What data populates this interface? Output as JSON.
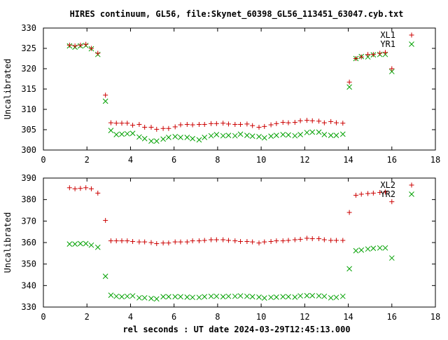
{
  "figure": {
    "title": "HIRES continuum, GL56, file:Skynet_60398_GL56_113451_63047.cyb.txt",
    "xlabel": "rel seconds : UT date 2024-03-29T12:45:13.000"
  },
  "colors": {
    "red": "#cc0000",
    "green": "#00a000",
    "axes": "#000000"
  },
  "chart_data": [
    {
      "type": "scatter",
      "ylabel": "Uncalibrated",
      "xlim": [
        0,
        18
      ],
      "ylim": [
        300,
        330
      ],
      "xticks": [
        0,
        2,
        4,
        6,
        8,
        10,
        12,
        14,
        16,
        18
      ],
      "yticks": [
        300,
        305,
        310,
        315,
        320,
        325,
        330
      ],
      "legend": "top-right",
      "grid": false,
      "series": [
        {
          "name": "XL1",
          "marker": "+",
          "color": "#cc0000",
          "x": [
            1.2,
            1.45,
            1.7,
            1.95,
            2.2,
            2.5,
            2.85,
            3.1,
            3.35,
            3.6,
            3.85,
            4.1,
            4.4,
            4.65,
            4.95,
            5.2,
            5.5,
            5.75,
            6.05,
            6.3,
            6.6,
            6.85,
            7.15,
            7.4,
            7.7,
            7.95,
            8.25,
            8.5,
            8.8,
            9.05,
            9.35,
            9.6,
            9.9,
            10.15,
            10.45,
            10.7,
            11.0,
            11.25,
            11.55,
            11.8,
            12.1,
            12.35,
            12.65,
            12.9,
            13.2,
            13.45,
            13.75,
            14.05,
            14.35,
            14.6,
            14.9,
            15.15,
            15.45,
            15.7,
            16.0
          ],
          "y": [
            325.8,
            325.6,
            325.8,
            326.0,
            325.0,
            323.8,
            313.5,
            306.7,
            306.6,
            306.6,
            306.6,
            306.1,
            306.3,
            305.6,
            305.6,
            305.1,
            305.3,
            305.3,
            305.7,
            306.2,
            306.3,
            306.2,
            306.3,
            306.3,
            306.5,
            306.5,
            306.6,
            306.4,
            306.3,
            306.3,
            306.4,
            306.0,
            305.6,
            305.8,
            306.2,
            306.5,
            306.8,
            306.7,
            306.8,
            307.2,
            307.3,
            307.2,
            307.1,
            306.7,
            307.0,
            306.7,
            306.6,
            316.7,
            322.5,
            322.9,
            323.5,
            323.5,
            323.8,
            324.0,
            320.0
          ]
        },
        {
          "name": "YR1",
          "marker": "x",
          "color": "#00a000",
          "x": [
            1.2,
            1.45,
            1.7,
            1.95,
            2.2,
            2.5,
            2.85,
            3.1,
            3.35,
            3.6,
            3.85,
            4.1,
            4.4,
            4.65,
            4.95,
            5.2,
            5.5,
            5.75,
            6.05,
            6.3,
            6.6,
            6.85,
            7.15,
            7.4,
            7.7,
            7.95,
            8.25,
            8.5,
            8.8,
            9.05,
            9.35,
            9.6,
            9.9,
            10.15,
            10.45,
            10.7,
            11.0,
            11.25,
            11.55,
            11.8,
            12.1,
            12.35,
            12.65,
            12.9,
            13.2,
            13.45,
            13.75,
            14.05,
            14.35,
            14.6,
            14.9,
            15.15,
            15.45,
            15.7,
            16.0
          ],
          "y": [
            325.6,
            325.3,
            325.6,
            325.7,
            324.9,
            323.5,
            312.0,
            304.8,
            303.8,
            303.9,
            304.0,
            304.1,
            303.2,
            302.8,
            302.2,
            302.2,
            302.7,
            303.1,
            303.3,
            303.1,
            303.1,
            302.8,
            302.5,
            303.1,
            303.5,
            303.8,
            303.5,
            303.6,
            303.5,
            303.9,
            303.6,
            303.4,
            303.3,
            303.0,
            303.4,
            303.6,
            303.8,
            303.7,
            303.5,
            303.8,
            304.3,
            304.4,
            304.4,
            303.8,
            303.6,
            303.6,
            303.9,
            315.5,
            322.5,
            323.0,
            322.9,
            323.4,
            323.5,
            323.5,
            319.3
          ]
        }
      ]
    },
    {
      "type": "scatter",
      "ylabel": "Uncalibrated",
      "xlim": [
        0,
        18
      ],
      "ylim": [
        330,
        390
      ],
      "xticks": [
        0,
        2,
        4,
        6,
        8,
        10,
        12,
        14,
        16,
        18
      ],
      "yticks": [
        330,
        340,
        350,
        360,
        370,
        380,
        390
      ],
      "legend": "top-right",
      "grid": false,
      "series": [
        {
          "name": "XL2",
          "marker": "+",
          "color": "#cc0000",
          "x": [
            1.2,
            1.45,
            1.7,
            1.95,
            2.2,
            2.5,
            2.85,
            3.1,
            3.35,
            3.6,
            3.85,
            4.1,
            4.4,
            4.65,
            4.95,
            5.2,
            5.5,
            5.75,
            6.05,
            6.3,
            6.6,
            6.85,
            7.15,
            7.4,
            7.7,
            7.95,
            8.25,
            8.5,
            8.8,
            9.05,
            9.35,
            9.6,
            9.9,
            10.15,
            10.45,
            10.7,
            11.0,
            11.25,
            11.55,
            11.8,
            12.1,
            12.35,
            12.65,
            12.9,
            13.2,
            13.45,
            13.75,
            14.05,
            14.35,
            14.6,
            14.9,
            15.15,
            15.45,
            15.7,
            16.0
          ],
          "y": [
            385.5,
            385.0,
            385.2,
            385.5,
            385.0,
            383.0,
            370.3,
            360.8,
            360.8,
            360.8,
            360.8,
            360.5,
            360.3,
            360.3,
            360.0,
            359.5,
            359.8,
            359.8,
            360.3,
            360.3,
            360.3,
            360.8,
            360.8,
            361.0,
            361.3,
            361.3,
            361.3,
            361.0,
            360.8,
            360.5,
            360.5,
            360.3,
            359.8,
            360.3,
            360.5,
            360.8,
            360.8,
            361.0,
            361.3,
            361.5,
            362.0,
            361.8,
            361.8,
            361.3,
            361.0,
            361.0,
            361.0,
            374.0,
            382.0,
            382.5,
            382.8,
            383.0,
            383.3,
            383.5,
            379.0
          ]
        },
        {
          "name": "YR2",
          "marker": "x",
          "color": "#00a000",
          "x": [
            1.2,
            1.45,
            1.7,
            1.95,
            2.2,
            2.5,
            2.85,
            3.1,
            3.35,
            3.6,
            3.85,
            4.1,
            4.4,
            4.65,
            4.95,
            5.2,
            5.5,
            5.75,
            6.05,
            6.3,
            6.6,
            6.85,
            7.15,
            7.4,
            7.7,
            7.95,
            8.25,
            8.5,
            8.8,
            9.05,
            9.35,
            9.6,
            9.9,
            10.15,
            10.45,
            10.7,
            11.0,
            11.25,
            11.55,
            11.8,
            12.1,
            12.35,
            12.65,
            12.9,
            13.2,
            13.45,
            13.75,
            14.05,
            14.35,
            14.6,
            14.9,
            15.15,
            15.45,
            15.7,
            16.0
          ],
          "y": [
            359.3,
            359.3,
            359.5,
            359.5,
            358.8,
            357.8,
            344.3,
            335.5,
            335.0,
            334.8,
            335.0,
            335.2,
            334.3,
            334.3,
            334.0,
            333.8,
            334.8,
            334.8,
            334.8,
            334.8,
            334.6,
            334.5,
            334.5,
            334.8,
            335.0,
            335.0,
            334.8,
            335.0,
            335.0,
            335.2,
            335.0,
            334.8,
            334.6,
            334.2,
            334.5,
            334.6,
            334.8,
            334.8,
            334.6,
            335.2,
            335.3,
            335.3,
            335.2,
            335.0,
            334.3,
            334.5,
            335.0,
            347.8,
            356.2,
            356.5,
            357.0,
            357.3,
            357.5,
            357.5,
            352.8
          ]
        }
      ]
    }
  ]
}
